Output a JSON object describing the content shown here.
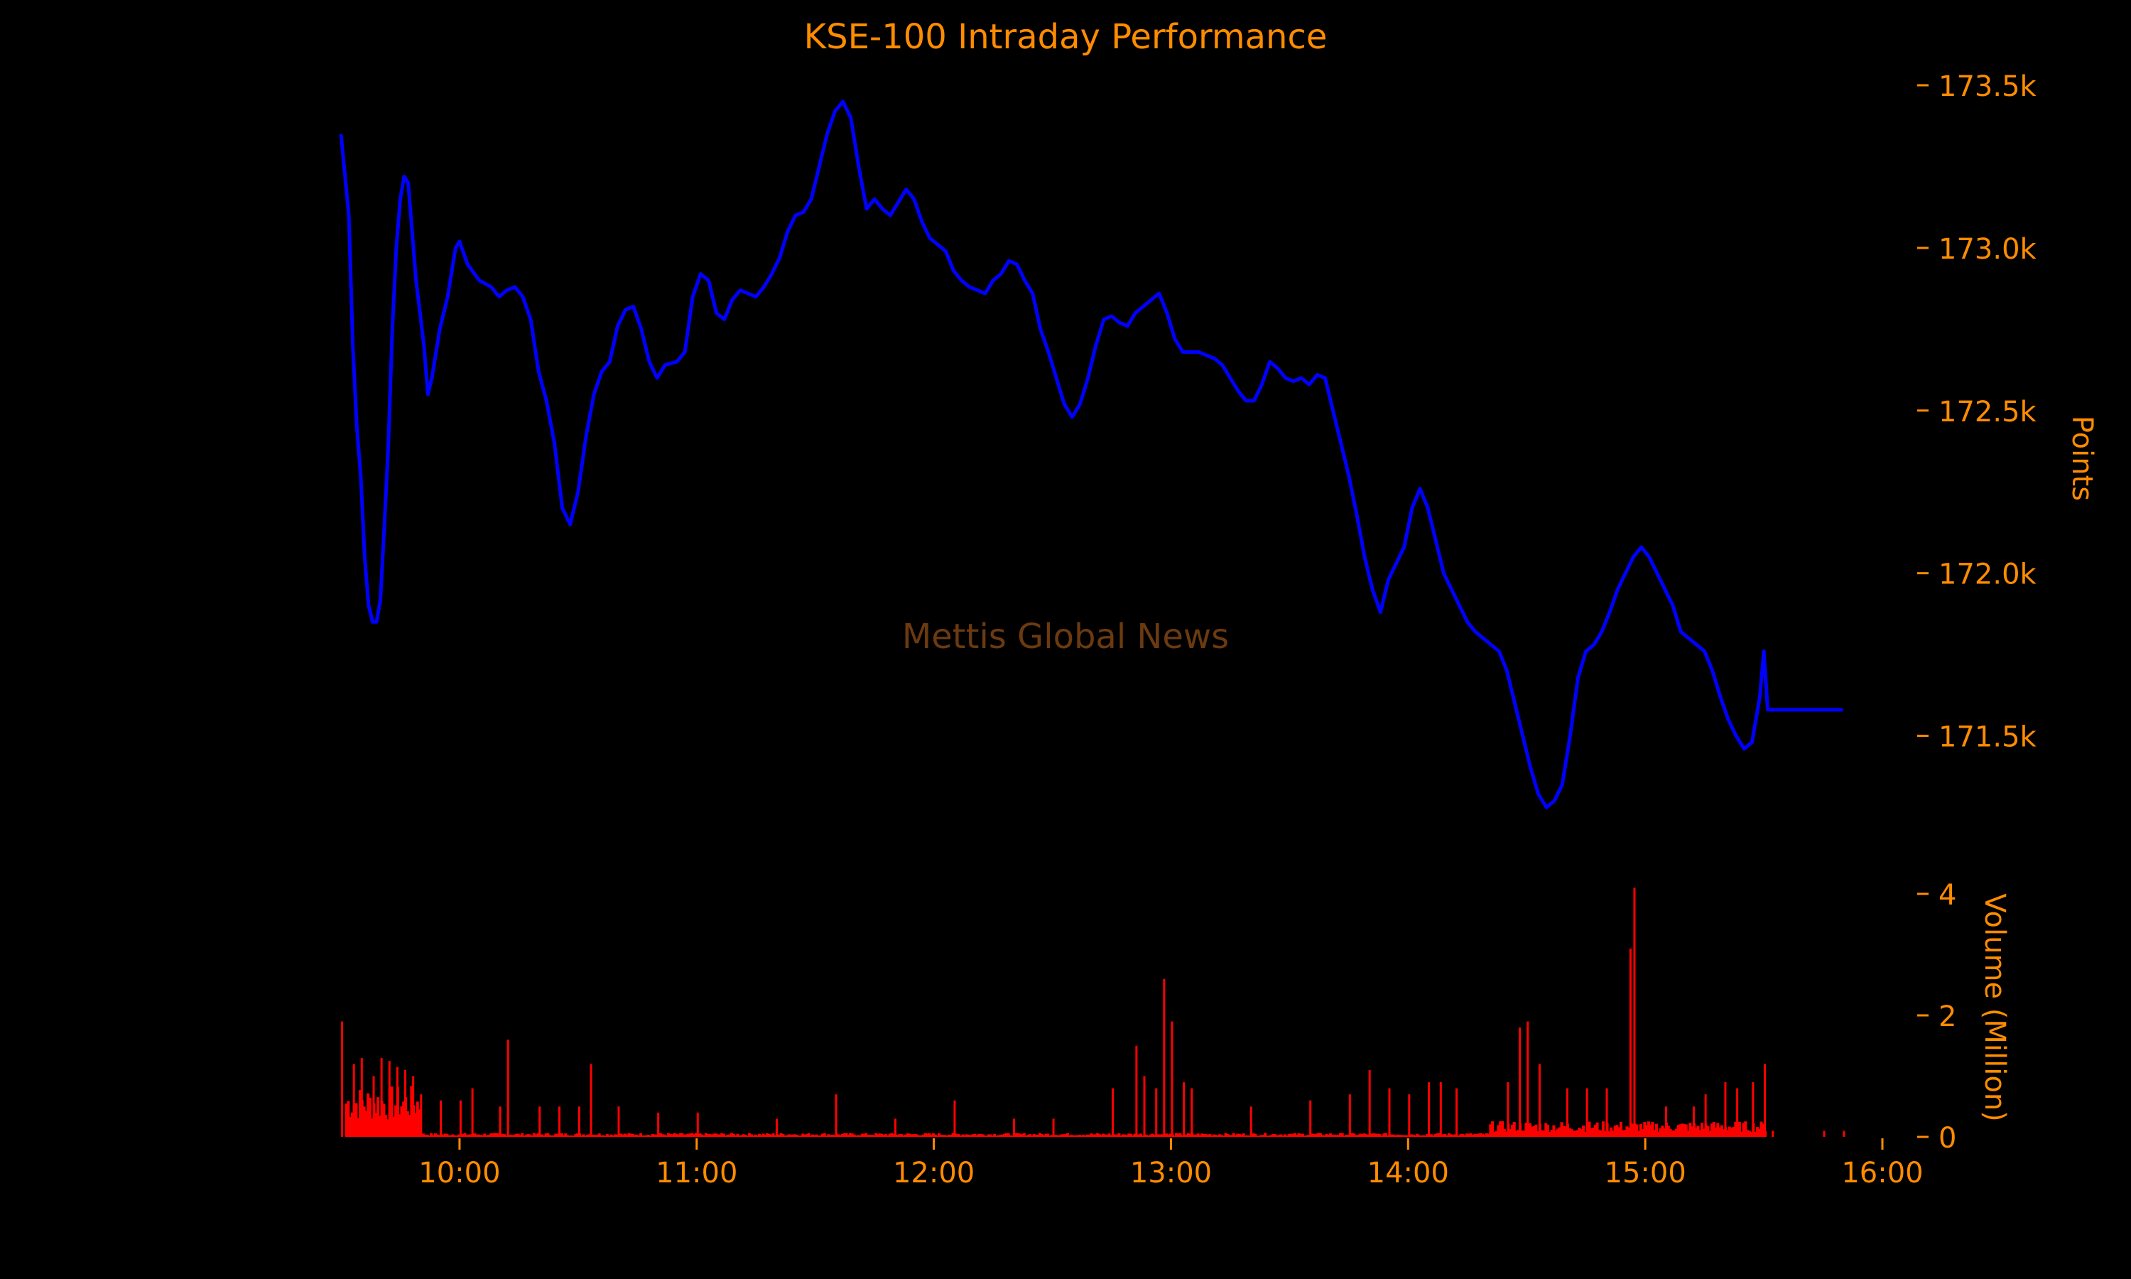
{
  "chart_data": {
    "type": "line",
    "title": "KSE-100 Intraday Performance",
    "watermark": "Mettis Global News",
    "colors": {
      "background": "#000000",
      "text": "#ff8c00",
      "price_line": "#0000ff",
      "volume_bars": "#ff0000",
      "watermark": "#6b3a10"
    },
    "x_axis": {
      "ticks": [
        "10:00",
        "11:00",
        "12:00",
        "13:00",
        "14:00",
        "15:00",
        "16:00"
      ],
      "range": [
        "09:30",
        "16:00"
      ]
    },
    "price_panel": {
      "ylabel": "Points",
      "ylim": [
        171250,
        173500
      ],
      "ticks": [
        171500,
        172000,
        172500,
        173000,
        173500
      ],
      "tick_labels": [
        "171.5k",
        "172.0k",
        "172.5k",
        "173.0k",
        "173.5k"
      ],
      "series": [
        {
          "points": [
            [
              "09:30",
              173350
            ],
            [
              "09:32",
              173100
            ],
            [
              "09:33",
              172700
            ],
            [
              "09:34",
              172450
            ],
            [
              "09:35",
              172300
            ],
            [
              "09:36",
              172050
            ],
            [
              "09:37",
              171900
            ],
            [
              "09:38",
              171850
            ],
            [
              "09:39",
              171850
            ],
            [
              "09:40",
              171920
            ],
            [
              "09:41",
              172150
            ],
            [
              "09:42",
              172400
            ],
            [
              "09:43",
              172750
            ],
            [
              "09:44",
              173000
            ],
            [
              "09:45",
              173150
            ],
            [
              "09:46",
              173220
            ],
            [
              "09:47",
              173200
            ],
            [
              "09:48",
              173050
            ],
            [
              "09:49",
              172900
            ],
            [
              "09:50",
              172800
            ],
            [
              "09:51",
              172700
            ],
            [
              "09:52",
              172550
            ],
            [
              "09:53",
              172600
            ],
            [
              "09:55",
              172750
            ],
            [
              "09:57",
              172850
            ],
            [
              "09:59",
              173000
            ],
            [
              "10:00",
              173020
            ],
            [
              "10:02",
              172950
            ],
            [
              "10:05",
              172900
            ],
            [
              "10:08",
              172880
            ],
            [
              "10:10",
              172850
            ],
            [
              "10:12",
              172870
            ],
            [
              "10:14",
              172880
            ],
            [
              "10:16",
              172850
            ],
            [
              "10:18",
              172780
            ],
            [
              "10:20",
              172620
            ],
            [
              "10:22",
              172530
            ],
            [
              "10:24",
              172400
            ],
            [
              "10:26",
              172200
            ],
            [
              "10:28",
              172150
            ],
            [
              "10:30",
              172250
            ],
            [
              "10:32",
              172420
            ],
            [
              "10:34",
              172550
            ],
            [
              "10:36",
              172620
            ],
            [
              "10:38",
              172650
            ],
            [
              "10:40",
              172760
            ],
            [
              "10:42",
              172810
            ],
            [
              "10:44",
              172820
            ],
            [
              "10:46",
              172750
            ],
            [
              "10:48",
              172650
            ],
            [
              "10:50",
              172600
            ],
            [
              "10:52",
              172640
            ],
            [
              "10:55",
              172650
            ],
            [
              "10:57",
              172680
            ],
            [
              "10:59",
              172850
            ],
            [
              "11:01",
              172920
            ],
            [
              "11:03",
              172900
            ],
            [
              "11:05",
              172800
            ],
            [
              "11:07",
              172780
            ],
            [
              "11:09",
              172840
            ],
            [
              "11:11",
              172870
            ],
            [
              "11:13",
              172860
            ],
            [
              "11:15",
              172850
            ],
            [
              "11:17",
              172880
            ],
            [
              "11:19",
              172920
            ],
            [
              "11:21",
              172970
            ],
            [
              "11:23",
              173050
            ],
            [
              "11:25",
              173100
            ],
            [
              "11:27",
              173110
            ],
            [
              "11:29",
              173150
            ],
            [
              "11:31",
              173250
            ],
            [
              "11:33",
              173350
            ],
            [
              "11:35",
              173420
            ],
            [
              "11:37",
              173450
            ],
            [
              "11:39",
              173400
            ],
            [
              "11:41",
              173250
            ],
            [
              "11:43",
              173120
            ],
            [
              "11:45",
              173150
            ],
            [
              "11:47",
              173120
            ],
            [
              "11:49",
              173100
            ],
            [
              "11:51",
              173140
            ],
            [
              "11:53",
              173180
            ],
            [
              "11:55",
              173150
            ],
            [
              "11:57",
              173080
            ],
            [
              "11:59",
              173030
            ],
            [
              "12:01",
              173010
            ],
            [
              "12:03",
              172990
            ],
            [
              "12:05",
              172930
            ],
            [
              "12:07",
              172900
            ],
            [
              "12:09",
              172880
            ],
            [
              "12:11",
              172870
            ],
            [
              "12:13",
              172860
            ],
            [
              "12:15",
              172900
            ],
            [
              "12:17",
              172920
            ],
            [
              "12:19",
              172960
            ],
            [
              "12:21",
              172950
            ],
            [
              "12:23",
              172900
            ],
            [
              "12:25",
              172860
            ],
            [
              "12:27",
              172750
            ],
            [
              "12:29",
              172680
            ],
            [
              "12:31",
              172600
            ],
            [
              "12:33",
              172520
            ],
            [
              "12:35",
              172480
            ],
            [
              "12:37",
              172520
            ],
            [
              "12:39",
              172600
            ],
            [
              "12:41",
              172700
            ],
            [
              "12:43",
              172780
            ],
            [
              "12:45",
              172790
            ],
            [
              "12:47",
              172770
            ],
            [
              "12:49",
              172760
            ],
            [
              "12:51",
              172800
            ],
            [
              "12:53",
              172820
            ],
            [
              "12:55",
              172840
            ],
            [
              "12:57",
              172860
            ],
            [
              "12:59",
              172800
            ],
            [
              "13:01",
              172720
            ],
            [
              "13:03",
              172680
            ],
            [
              "13:05",
              172680
            ],
            [
              "13:07",
              172680
            ],
            [
              "13:09",
              172670
            ],
            [
              "13:11",
              172660
            ],
            [
              "13:13",
              172640
            ],
            [
              "13:15",
              172600
            ],
            [
              "13:17",
              172560
            ],
            [
              "13:19",
              172530
            ],
            [
              "13:21",
              172530
            ],
            [
              "13:23",
              172580
            ],
            [
              "13:25",
              172650
            ],
            [
              "13:27",
              172630
            ],
            [
              "13:29",
              172600
            ],
            [
              "13:31",
              172590
            ],
            [
              "13:33",
              172600
            ],
            [
              "13:35",
              172580
            ],
            [
              "13:37",
              172610
            ],
            [
              "13:39",
              172600
            ],
            [
              "13:41",
              172500
            ],
            [
              "13:43",
              172400
            ],
            [
              "13:45",
              172300
            ],
            [
              "13:47",
              172180
            ],
            [
              "13:49",
              172050
            ],
            [
              "13:51",
              171950
            ],
            [
              "13:53",
              171880
            ],
            [
              "13:55",
              171980
            ],
            [
              "13:57",
              172030
            ],
            [
              "13:59",
              172080
            ],
            [
              "14:01",
              172200
            ],
            [
              "14:03",
              172260
            ],
            [
              "14:05",
              172200
            ],
            [
              "14:07",
              172100
            ],
            [
              "14:09",
              172000
            ],
            [
              "14:11",
              171950
            ],
            [
              "14:13",
              171900
            ],
            [
              "14:15",
              171850
            ],
            [
              "14:17",
              171820
            ],
            [
              "14:19",
              171800
            ],
            [
              "14:21",
              171780
            ],
            [
              "14:23",
              171760
            ],
            [
              "14:25",
              171700
            ],
            [
              "14:27",
              171600
            ],
            [
              "14:29",
              171500
            ],
            [
              "14:31",
              171400
            ],
            [
              "14:33",
              171320
            ],
            [
              "14:35",
              171280
            ],
            [
              "14:37",
              171300
            ],
            [
              "14:39",
              171350
            ],
            [
              "14:41",
              171500
            ],
            [
              "14:43",
              171680
            ],
            [
              "14:45",
              171760
            ],
            [
              "14:47",
              171780
            ],
            [
              "14:49",
              171820
            ],
            [
              "14:51",
              171880
            ],
            [
              "14:53",
              171950
            ],
            [
              "14:55",
              172000
            ],
            [
              "14:57",
              172050
            ],
            [
              "14:59",
              172080
            ],
            [
              "15:01",
              172050
            ],
            [
              "15:03",
              172000
            ],
            [
              "15:05",
              171950
            ],
            [
              "15:07",
              171900
            ],
            [
              "15:09",
              171820
            ],
            [
              "15:11",
              171800
            ],
            [
              "15:13",
              171780
            ],
            [
              "15:15",
              171760
            ],
            [
              "15:17",
              171700
            ],
            [
              "15:19",
              171620
            ],
            [
              "15:21",
              171550
            ],
            [
              "15:23",
              171500
            ],
            [
              "15:25",
              171460
            ],
            [
              "15:27",
              171480
            ],
            [
              "15:29",
              171620
            ],
            [
              "15:30",
              171760
            ],
            [
              "15:31",
              171580
            ],
            [
              "15:50",
              171580
            ]
          ]
        }
      ]
    },
    "volume_panel": {
      "ylabel": "Volume (Million)",
      "ylim": [
        0,
        4
      ],
      "ticks": [
        0,
        2,
        4
      ],
      "tick_labels": [
        "0",
        "2",
        "4"
      ],
      "spikes": [
        [
          "09:30",
          1.9
        ],
        [
          "09:33",
          1.2
        ],
        [
          "09:35",
          1.3
        ],
        [
          "09:38",
          1.0
        ],
        [
          "09:40",
          1.3
        ],
        [
          "09:42",
          1.25
        ],
        [
          "09:44",
          1.15
        ],
        [
          "09:46",
          1.1
        ],
        [
          "09:48",
          1.0
        ],
        [
          "09:50",
          0.7
        ],
        [
          "09:55",
          0.6
        ],
        [
          "10:00",
          0.6
        ],
        [
          "10:03",
          0.8
        ],
        [
          "10:10",
          0.5
        ],
        [
          "10:12",
          1.6
        ],
        [
          "10:20",
          0.5
        ],
        [
          "10:25",
          0.5
        ],
        [
          "10:30",
          0.5
        ],
        [
          "10:33",
          1.2
        ],
        [
          "10:40",
          0.5
        ],
        [
          "10:50",
          0.4
        ],
        [
          "11:00",
          0.4
        ],
        [
          "11:20",
          0.3
        ],
        [
          "11:35",
          0.7
        ],
        [
          "11:50",
          0.3
        ],
        [
          "12:05",
          0.6
        ],
        [
          "12:20",
          0.3
        ],
        [
          "12:30",
          0.3
        ],
        [
          "12:45",
          0.8
        ],
        [
          "12:51",
          1.5
        ],
        [
          "12:53",
          1.0
        ],
        [
          "12:56",
          0.8
        ],
        [
          "12:58",
          2.6
        ],
        [
          "13:00",
          1.9
        ],
        [
          "13:03",
          0.9
        ],
        [
          "13:05",
          0.8
        ],
        [
          "13:20",
          0.5
        ],
        [
          "13:35",
          0.6
        ],
        [
          "13:45",
          0.7
        ],
        [
          "13:50",
          1.1
        ],
        [
          "13:55",
          0.8
        ],
        [
          "14:00",
          0.7
        ],
        [
          "14:05",
          0.9
        ],
        [
          "14:08",
          0.9
        ],
        [
          "14:12",
          0.8
        ],
        [
          "14:25",
          0.9
        ],
        [
          "14:28",
          1.8
        ],
        [
          "14:30",
          1.9
        ],
        [
          "14:33",
          1.2
        ],
        [
          "14:40",
          0.8
        ],
        [
          "14:45",
          0.8
        ],
        [
          "14:50",
          0.8
        ],
        [
          "14:56",
          3.1
        ],
        [
          "14:57",
          4.1
        ],
        [
          "15:05",
          0.5
        ],
        [
          "15:12",
          0.5
        ],
        [
          "15:15",
          0.7
        ],
        [
          "15:20",
          0.9
        ],
        [
          "15:23",
          0.8
        ],
        [
          "15:27",
          0.9
        ],
        [
          "15:30",
          1.2
        ],
        [
          "15:32",
          0.1
        ],
        [
          "15:45",
          0.1
        ],
        [
          "15:50",
          0.1
        ]
      ]
    }
  }
}
